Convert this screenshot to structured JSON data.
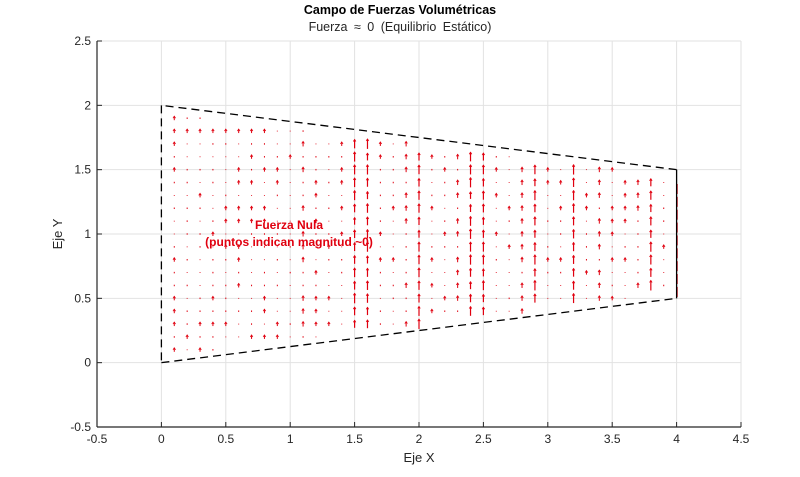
{
  "chart_data": {
    "type": "quiver",
    "title": "Campo de Fuerzas Volumétricas",
    "subtitle": "Fuerza  ≈ 0  (Equilibrio  Estático)",
    "xlabel": "Eje X",
    "ylabel": "Eje Y",
    "xlim": [
      -0.5,
      4.5
    ],
    "ylim": [
      -0.5,
      2.5
    ],
    "xticks": [
      -0.5,
      0,
      0.5,
      1,
      1.5,
      2,
      2.5,
      3,
      3.5,
      4,
      4.5
    ],
    "xtick_labels": [
      "-0.5",
      "0",
      "0.5",
      "1",
      "1.5",
      "2",
      "2.5",
      "3",
      "3.5",
      "4",
      "4.5"
    ],
    "yticks": [
      -0.5,
      0,
      0.5,
      1,
      1.5,
      2,
      2.5
    ],
    "ytick_labels": [
      "-0.5",
      "0",
      "0.5",
      "1",
      "1.5",
      "2",
      "2.5"
    ],
    "grid": true,
    "domain_boundary": {
      "style": "dashed",
      "color": "#000000",
      "vertices": [
        [
          0,
          0
        ],
        [
          4,
          0.5
        ],
        [
          4,
          1.5
        ],
        [
          0,
          2
        ],
        [
          0,
          0
        ]
      ]
    },
    "arrow_color": "#e0000f",
    "arrow_grid": {
      "x_start": 0.1,
      "x_end": 3.9,
      "x_step": 0.1,
      "y_step": 0.1
    },
    "magnitude_note": "near-zero vectors; vertical streaks at selected columns",
    "streak_columns": [
      1.5,
      1.6,
      2.0,
      2.4,
      2.5,
      2.9,
      3.2,
      3.8,
      4.0
    ],
    "medium_columns": [
      1.1,
      1.9,
      2.3,
      2.8,
      3.4,
      3.7
    ],
    "annotation": {
      "line1": "Fuerza Nula",
      "line2": "(puntos indican magnitud ~0)",
      "x": 1.0,
      "y": 1.0,
      "color": "#e0000f"
    }
  }
}
